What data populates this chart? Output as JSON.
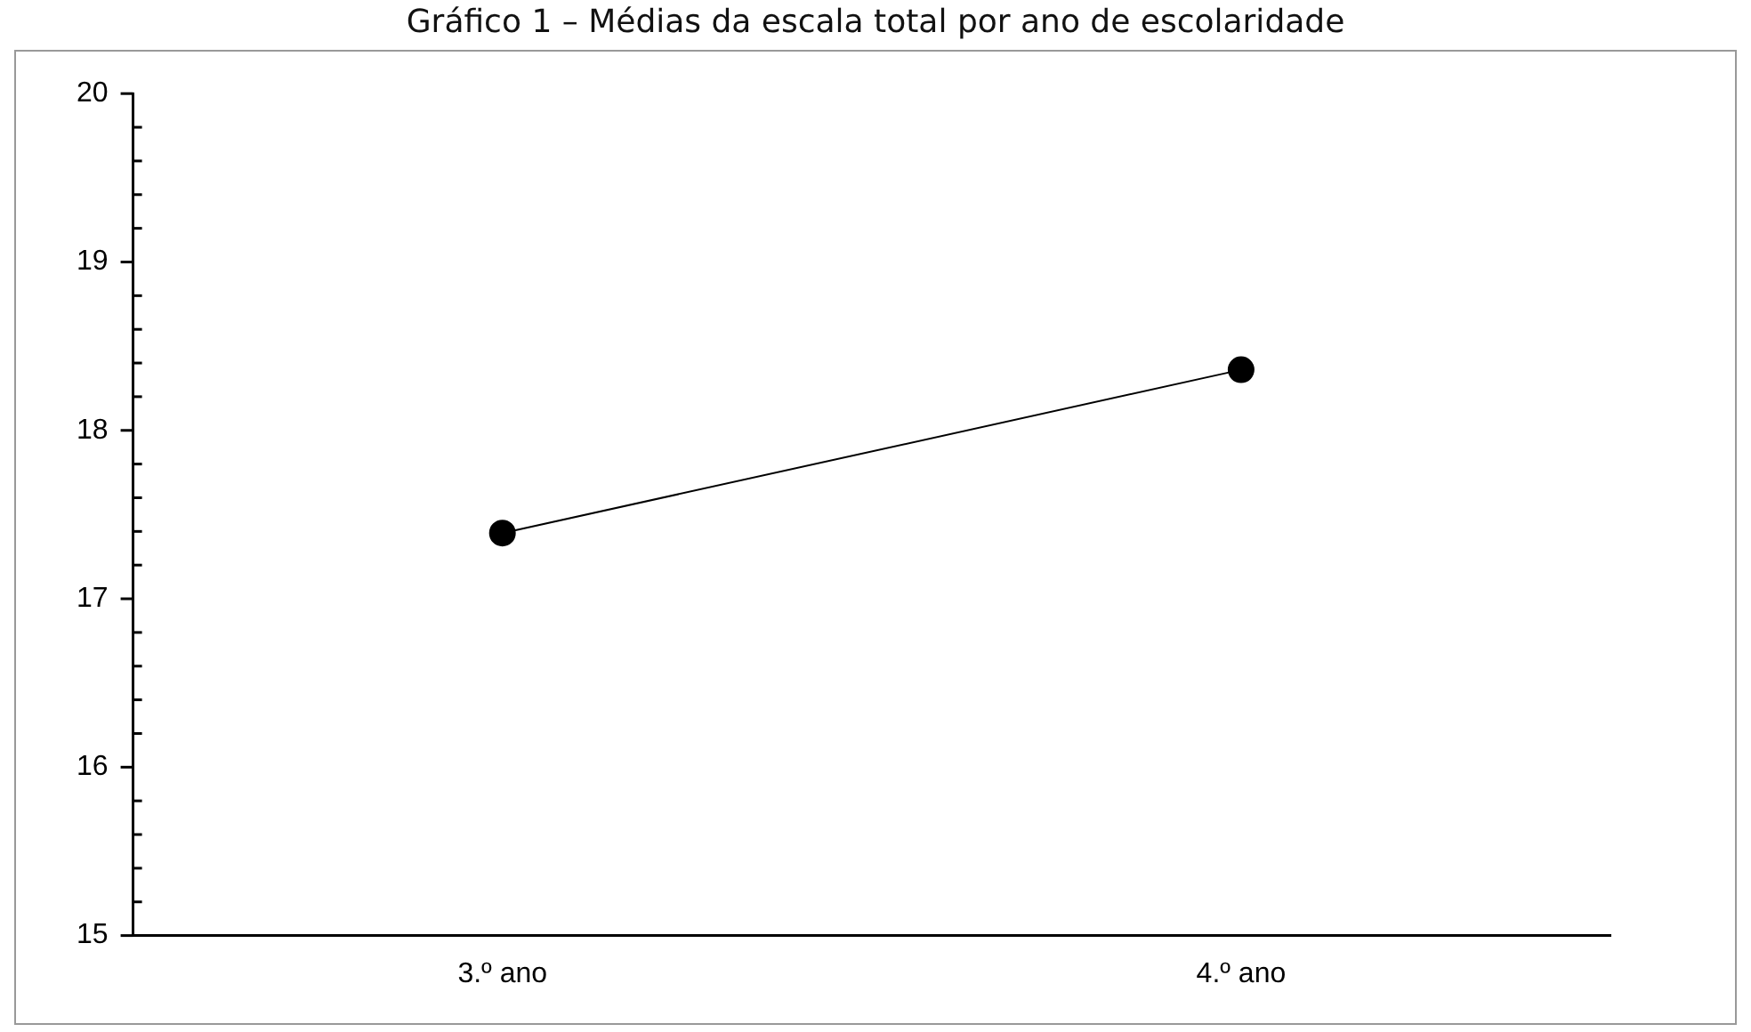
{
  "chart_data": {
    "type": "line",
    "title": "Gráfico 1 – Médias da escala total por ano de escolaridade",
    "categories": [
      "3.º ano",
      "4.º ano"
    ],
    "series": [
      {
        "color": "#000000",
        "values": [
          17.39,
          18.36
        ]
      }
    ],
    "ylim": [
      15,
      20
    ],
    "yticks": [
      15,
      {
        "value": 15.2,
        "label": null
      },
      {
        "value": 15.4,
        "label": null
      },
      {
        "value": 15.6,
        "label": null
      },
      {
        "value": 15.8,
        "label": null
      },
      16,
      {
        "value": 16.2,
        "label": null
      },
      {
        "value": 16.4,
        "label": null
      },
      {
        "value": 16.6,
        "label": null
      },
      {
        "value": 16.8,
        "label": null
      },
      17,
      {
        "value": 17.2,
        "label": null
      },
      {
        "value": 17.4,
        "label": null
      },
      {
        "value": 17.6,
        "label": null
      },
      {
        "value": 17.8,
        "label": null
      },
      18,
      {
        "value": 18.2,
        "label": null
      },
      {
        "value": 18.4,
        "label": null
      },
      {
        "value": 18.6,
        "label": null
      },
      {
        "value": 18.8,
        "label": null
      },
      19,
      {
        "value": 19.2,
        "label": null
      },
      {
        "value": 19.4,
        "label": null
      },
      {
        "value": 19.6,
        "label": null
      },
      {
        "value": 19.8,
        "label": null
      },
      20
    ],
    "grid": false,
    "legend": false,
    "marker": "circle",
    "line_style": "solid"
  }
}
